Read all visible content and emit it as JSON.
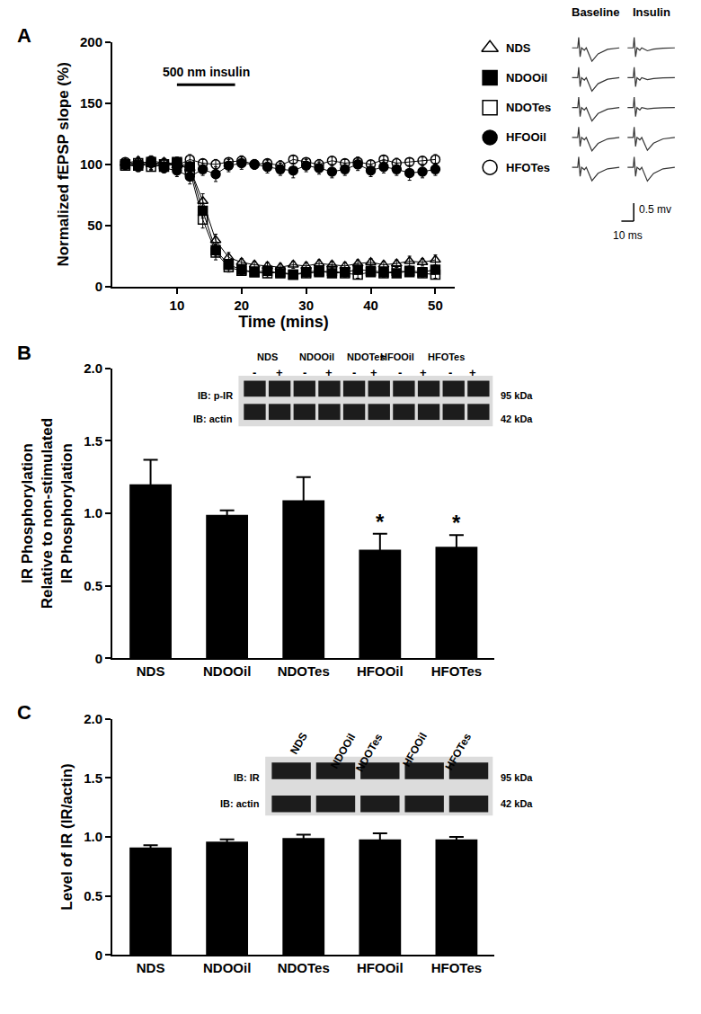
{
  "chart_data": [
    {
      "title": "A",
      "type": "line",
      "x": [
        2,
        4,
        6,
        8,
        10,
        12,
        14,
        16,
        18,
        20,
        22,
        24,
        26,
        28,
        30,
        32,
        34,
        36,
        38,
        40,
        42,
        44,
        46,
        48,
        50
      ],
      "xlim": [
        0,
        53
      ],
      "ylim": [
        0,
        200
      ],
      "xticks": [
        10,
        20,
        30,
        40,
        50
      ],
      "yticks": [
        0,
        50,
        100,
        150,
        200
      ],
      "x_label": "Time (mins)",
      "y_label": "Normalized fEPSP slope (%)",
      "grid": false,
      "legend": "right",
      "annotations": [
        {
          "text": "500 nm insulin",
          "x_start": 10,
          "x_end": 19,
          "y": 165
        }
      ],
      "inset": {
        "columns": [
          "Baseline",
          "Insulin"
        ],
        "scale_bar": [
          "0.5 mv",
          "10 ms"
        ]
      },
      "series": [
        {
          "name": "NDS",
          "color": "#000000",
          "marker": "triangle-up-open",
          "values": [
            101,
            103,
            100,
            102,
            99,
            97,
            70,
            38,
            24,
            20,
            18,
            17,
            16,
            18,
            17,
            19,
            18,
            17,
            19,
            20,
            18,
            19,
            21,
            20,
            22
          ],
          "errors": [
            4,
            3,
            4,
            3,
            4,
            5,
            6,
            5,
            4,
            3,
            3,
            3,
            3,
            3,
            3,
            3,
            3,
            3,
            3,
            3,
            3,
            3,
            4,
            3,
            4
          ]
        },
        {
          "name": "NDOOil",
          "color": "#000000",
          "marker": "square",
          "values": [
            100,
            99,
            102,
            98,
            101,
            98,
            62,
            30,
            18,
            14,
            12,
            13,
            11,
            10,
            12,
            13,
            11,
            12,
            14,
            13,
            12,
            11,
            13,
            12,
            14
          ],
          "errors": [
            3,
            3,
            3,
            3,
            3,
            4,
            6,
            5,
            4,
            3,
            3,
            3,
            3,
            3,
            3,
            3,
            3,
            3,
            3,
            3,
            3,
            3,
            3,
            3,
            3
          ]
        },
        {
          "name": "NDOTes",
          "color": "#000000",
          "marker": "square-open",
          "values": [
            99,
            101,
            98,
            100,
            102,
            95,
            55,
            28,
            16,
            13,
            12,
            11,
            12,
            10,
            11,
            12,
            13,
            11,
            10,
            12,
            11,
            13,
            12,
            11,
            10
          ],
          "errors": [
            3,
            4,
            3,
            3,
            4,
            5,
            7,
            6,
            4,
            3,
            3,
            3,
            3,
            3,
            3,
            3,
            3,
            3,
            3,
            3,
            3,
            3,
            3,
            3,
            3
          ]
        },
        {
          "name": "HFOOil",
          "color": "#000000",
          "marker": "circle",
          "values": [
            100,
            98,
            101,
            97,
            95,
            90,
            96,
            92,
            99,
            101,
            100,
            98,
            96,
            95,
            99,
            97,
            94,
            96,
            100,
            95,
            98,
            96,
            93,
            94,
            96
          ],
          "errors": [
            4,
            4,
            5,
            4,
            5,
            6,
            5,
            6,
            5,
            5,
            4,
            5,
            5,
            6,
            5,
            5,
            5,
            5,
            5,
            5,
            5,
            5,
            6,
            5,
            5
          ]
        },
        {
          "name": "HFOTes",
          "color": "#000000",
          "marker": "circle-open",
          "values": [
            102,
            100,
            103,
            101,
            99,
            104,
            101,
            100,
            102,
            103,
            100,
            101,
            99,
            104,
            102,
            100,
            103,
            101,
            102,
            100,
            104,
            101,
            102,
            103,
            104
          ],
          "errors": [
            3,
            3,
            4,
            3,
            3,
            4,
            3,
            4,
            3,
            4,
            3,
            3,
            4,
            3,
            3,
            4,
            3,
            3,
            4,
            3,
            3,
            4,
            3,
            3,
            4
          ]
        }
      ]
    },
    {
      "title": "B",
      "type": "bar",
      "categories": [
        "NDS",
        "NDOOil",
        "NDOTes",
        "HFOOil",
        "HFOTes"
      ],
      "values": [
        1.2,
        0.99,
        1.09,
        0.75,
        0.77
      ],
      "errors": [
        0.17,
        0.03,
        0.16,
        0.11,
        0.08
      ],
      "color": "#000000",
      "ylim": [
        0,
        2
      ],
      "yticks": [
        0,
        0.5,
        {
          "value": 1,
          "label": "1.0"
        },
        1.5,
        {
          "value": 2,
          "label": "2.0"
        }
      ],
      "y_label": [
        "IR Phosphorylation",
        "Relative to non-stimulated",
        "IR Phosphorylation"
      ],
      "grid": false,
      "annotations": [
        {
          "category": "HFOOil",
          "text": "*"
        },
        {
          "category": "HFOTes",
          "text": "*"
        }
      ],
      "blot": {
        "groups": [
          "NDS",
          "NDOOil",
          "NDOTes",
          "HFOOil",
          "HFOTes"
        ],
        "lanes": [
          "-",
          "+"
        ],
        "bands": [
          {
            "label": "IB: p-IR",
            "size": "95 kDa"
          },
          {
            "label": "IB: actin",
            "size": "42 kDa"
          }
        ]
      }
    },
    {
      "title": "C",
      "type": "bar",
      "categories": [
        "NDS",
        "NDOOil",
        "NDOTes",
        "HFOOil",
        "HFOTes"
      ],
      "values": [
        0.91,
        0.96,
        0.99,
        0.98,
        0.98
      ],
      "errors": [
        0.02,
        0.02,
        0.03,
        0.05,
        0.02
      ],
      "color": "#000000",
      "ylim": [
        0,
        2
      ],
      "yticks": [
        0,
        0.5,
        {
          "value": 1,
          "label": "1.0"
        },
        1.5,
        {
          "value": 2,
          "label": "2.0"
        }
      ],
      "y_label": [
        "Level of IR (IR/actin)"
      ],
      "grid": false,
      "blot": {
        "groups": [
          "NDS",
          "NDOOil",
          "NDOTes",
          "HFOOil",
          "HFOTes"
        ],
        "bands": [
          {
            "label": "IB: IR",
            "size": "95 kDa"
          },
          {
            "label": "IB: actin",
            "size": "42 kDa"
          }
        ]
      }
    }
  ]
}
